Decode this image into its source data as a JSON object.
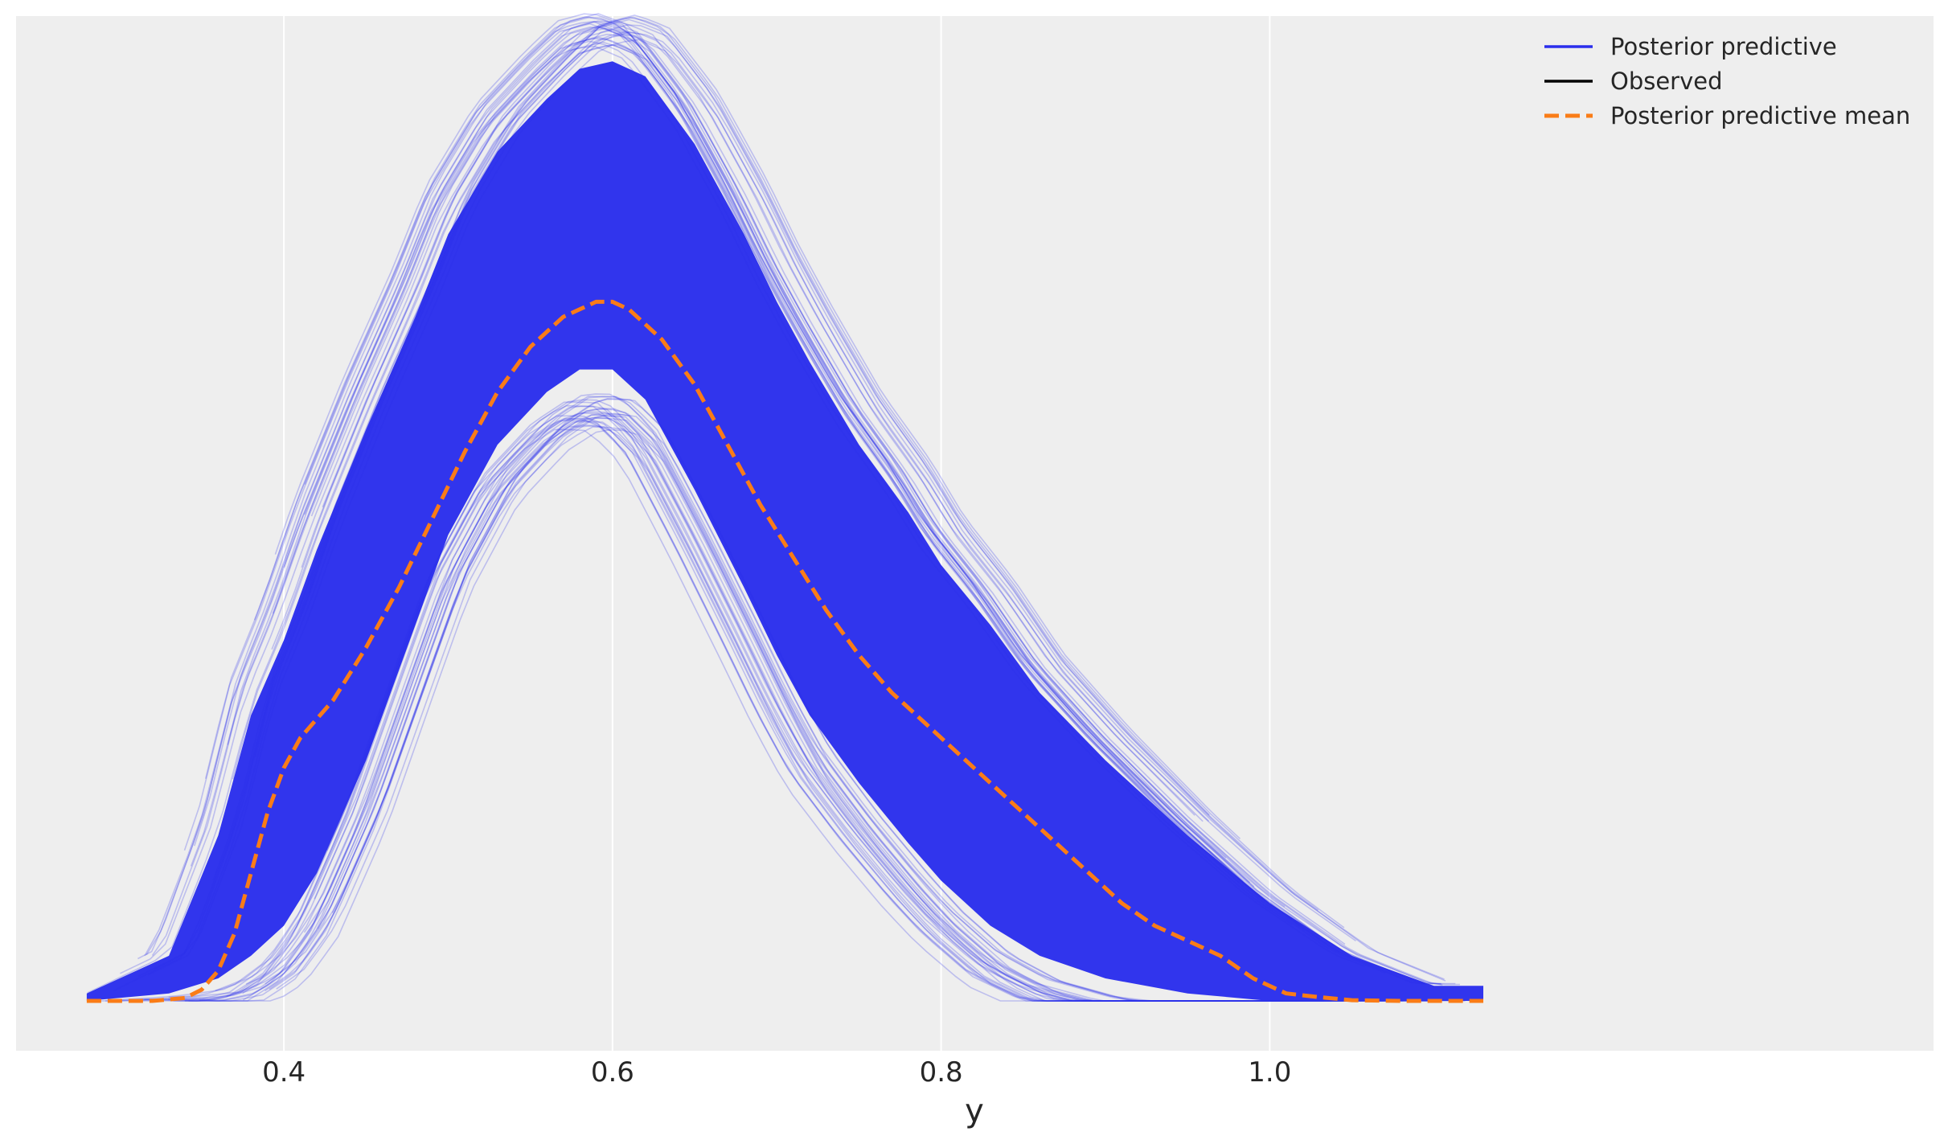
{
  "chart_data": {
    "type": "line",
    "title": "",
    "xlabel": "y",
    "ylabel": "",
    "xlim": [
      0.237,
      1.404
    ],
    "x_ticks": [
      0.4,
      0.6,
      0.8,
      1.0
    ],
    "x_tick_labels": [
      "0.4",
      "0.6",
      "0.8",
      "1.0"
    ],
    "grid": true,
    "show_y_axis": false,
    "legend_position": "top-right",
    "legend": [
      {
        "label": "Posterior predictive",
        "color": "#2a2eec",
        "style": "solid"
      },
      {
        "label": "Observed",
        "color": "#000000",
        "style": "solid"
      },
      {
        "label": "Posterior predictive mean",
        "color": "#fa7c17",
        "style": "dashed"
      }
    ],
    "colors": {
      "background": "#eeeeee",
      "grid": "#ffffff",
      "posterior": "#2a2eec",
      "mean": "#fa7c17"
    },
    "series": [
      {
        "name": "Posterior predictive",
        "band_upper": {
          "x": [
            0.28,
            0.33,
            0.36,
            0.38,
            0.4,
            0.42,
            0.45,
            0.48,
            0.5,
            0.53,
            0.56,
            0.58,
            0.6,
            0.62,
            0.65,
            0.68,
            0.7,
            0.72,
            0.75,
            0.78,
            0.8,
            0.83,
            0.86,
            0.9,
            0.95,
            1.0,
            1.05,
            1.1,
            1.13
          ],
          "y": [
            0.01,
            0.06,
            0.22,
            0.38,
            0.48,
            0.6,
            0.76,
            0.91,
            1.02,
            1.13,
            1.2,
            1.24,
            1.25,
            1.23,
            1.14,
            1.02,
            0.93,
            0.85,
            0.74,
            0.65,
            0.58,
            0.5,
            0.41,
            0.32,
            0.22,
            0.13,
            0.06,
            0.02,
            0.02
          ]
        },
        "band_lower": {
          "x": [
            0.28,
            0.33,
            0.36,
            0.38,
            0.4,
            0.42,
            0.45,
            0.48,
            0.5,
            0.53,
            0.56,
            0.58,
            0.6,
            0.62,
            0.65,
            0.68,
            0.7,
            0.72,
            0.75,
            0.78,
            0.8,
            0.83,
            0.86,
            0.9,
            0.95,
            1.0,
            1.05,
            1.1,
            1.13
          ],
          "y": [
            0.0,
            0.01,
            0.03,
            0.06,
            0.1,
            0.17,
            0.32,
            0.5,
            0.62,
            0.74,
            0.81,
            0.84,
            0.84,
            0.8,
            0.68,
            0.55,
            0.46,
            0.38,
            0.29,
            0.21,
            0.16,
            0.1,
            0.06,
            0.03,
            0.01,
            0.0,
            0.0,
            0.0,
            0.0
          ]
        }
      },
      {
        "name": "Posterior predictive mean",
        "x": [
          0.28,
          0.3,
          0.32,
          0.34,
          0.35,
          0.36,
          0.37,
          0.38,
          0.39,
          0.4,
          0.41,
          0.43,
          0.45,
          0.47,
          0.49,
          0.51,
          0.53,
          0.55,
          0.57,
          0.59,
          0.6,
          0.61,
          0.63,
          0.65,
          0.67,
          0.69,
          0.71,
          0.73,
          0.75,
          0.77,
          0.79,
          0.81,
          0.83,
          0.85,
          0.87,
          0.89,
          0.91,
          0.93,
          0.95,
          0.97,
          0.99,
          1.01,
          1.03,
          1.05,
          1.08,
          1.1,
          1.13
        ],
        "y": [
          0.0,
          0.0,
          0.0,
          0.004,
          0.015,
          0.04,
          0.09,
          0.17,
          0.25,
          0.31,
          0.35,
          0.4,
          0.47,
          0.55,
          0.64,
          0.73,
          0.81,
          0.87,
          0.91,
          0.93,
          0.93,
          0.92,
          0.88,
          0.82,
          0.74,
          0.66,
          0.59,
          0.52,
          0.46,
          0.41,
          0.37,
          0.33,
          0.29,
          0.25,
          0.21,
          0.17,
          0.13,
          0.1,
          0.08,
          0.06,
          0.03,
          0.01,
          0.005,
          0.001,
          0.0,
          0.0,
          0.0
        ]
      }
    ]
  }
}
